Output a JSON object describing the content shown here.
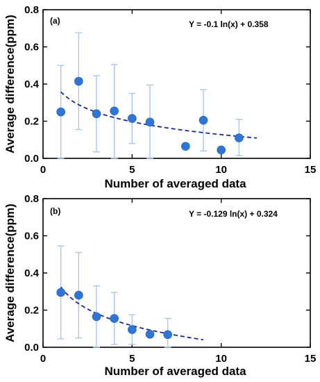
{
  "chart_data": [
    {
      "type": "scatter",
      "panel_label": "(a)",
      "equation": "Y = -0.1 ln(x) + 0.358",
      "xlabel": "Number of averaged data",
      "ylabel": "Average difference(ppm)",
      "xlim": [
        0,
        15
      ],
      "ylim": [
        0,
        0.8
      ],
      "xticks": [
        0,
        5,
        10,
        15
      ],
      "yticks": [
        0.0,
        0.2,
        0.4,
        0.6,
        0.8
      ],
      "xtick_labels": [
        "0",
        "5",
        "10",
        "15"
      ],
      "ytick_labels": [
        "0.0",
        "0.2",
        "0.4",
        "0.6",
        "0.8"
      ],
      "points": [
        {
          "x": 1,
          "y": 0.25,
          "err_low": 0.0,
          "err_high": 0.5
        },
        {
          "x": 2,
          "y": 0.415,
          "err_low": 0.155,
          "err_high": 0.675
        },
        {
          "x": 3,
          "y": 0.24,
          "err_low": 0.035,
          "err_high": 0.445
        },
        {
          "x": 4,
          "y": 0.255,
          "err_low": 0.0,
          "err_high": 0.505
        },
        {
          "x": 5,
          "y": 0.215,
          "err_low": 0.08,
          "err_high": 0.35
        },
        {
          "x": 6,
          "y": 0.195,
          "err_low": 0.0,
          "err_high": 0.395
        },
        {
          "x": 8,
          "y": 0.065,
          "err_low": null,
          "err_high": null
        },
        {
          "x": 9,
          "y": 0.205,
          "err_low": 0.04,
          "err_high": 0.37
        },
        {
          "x": 10,
          "y": 0.045,
          "err_low": null,
          "err_high": null
        },
        {
          "x": 11,
          "y": 0.11,
          "err_low": 0.015,
          "err_high": 0.21
        }
      ],
      "fit": {
        "a": -0.1,
        "b": 0.358,
        "x_start": 1,
        "x_end": 12
      },
      "colors": {
        "marker": "#2e75d6",
        "errorbar": "#a9c7ec",
        "fit": "#1a2a8c"
      }
    },
    {
      "type": "scatter",
      "panel_label": "(b)",
      "equation": "Y = -0.129 ln(x) + 0.324",
      "xlabel": "Number of averaged data",
      "ylabel": "Average difference(ppm)",
      "xlim": [
        0,
        15
      ],
      "ylim": [
        0,
        0.8
      ],
      "xticks": [
        0,
        5,
        10,
        15
      ],
      "yticks": [
        0.0,
        0.2,
        0.4,
        0.6,
        0.8
      ],
      "xtick_labels": [
        "0",
        "5",
        "10",
        "15"
      ],
      "ytick_labels": [
        "0.0",
        "0.2",
        "0.4",
        "0.6",
        "0.8"
      ],
      "points": [
        {
          "x": 1,
          "y": 0.295,
          "err_low": 0.045,
          "err_high": 0.545
        },
        {
          "x": 2,
          "y": 0.28,
          "err_low": 0.05,
          "err_high": 0.51
        },
        {
          "x": 3,
          "y": 0.165,
          "err_low": 0.0,
          "err_high": 0.33
        },
        {
          "x": 4,
          "y": 0.155,
          "err_low": 0.015,
          "err_high": 0.295
        },
        {
          "x": 5,
          "y": 0.095,
          "err_low": 0.015,
          "err_high": 0.175
        },
        {
          "x": 6,
          "y": 0.07,
          "err_low": null,
          "err_high": null
        },
        {
          "x": 7,
          "y": 0.068,
          "err_low": 0.0,
          "err_high": 0.155
        }
      ],
      "fit": {
        "a": -0.129,
        "b": 0.324,
        "x_start": 1,
        "x_end": 9
      },
      "colors": {
        "marker": "#2e75d6",
        "errorbar": "#a9c7ec",
        "fit": "#1a2a8c"
      }
    }
  ]
}
